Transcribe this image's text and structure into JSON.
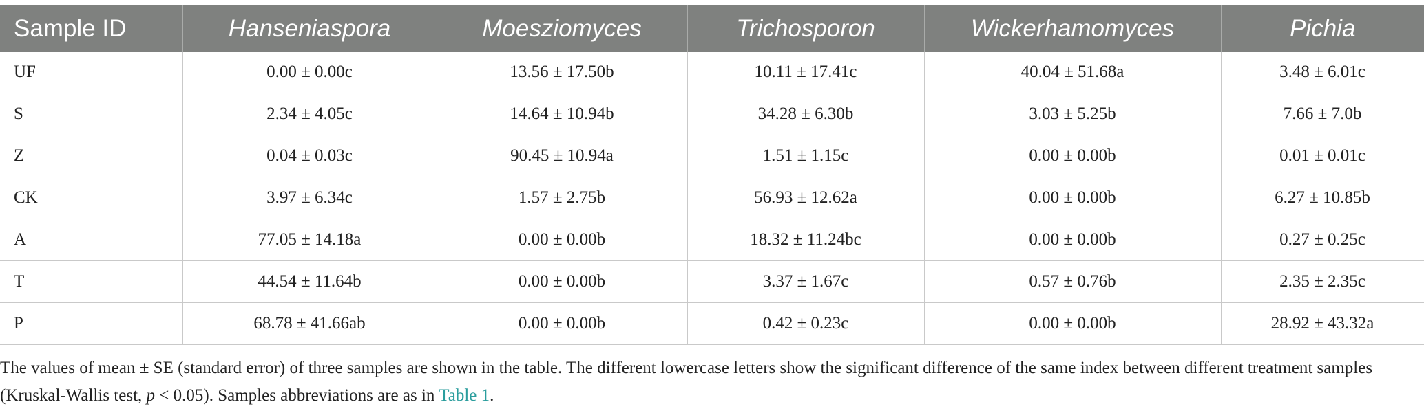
{
  "table": {
    "header": [
      "Sample ID",
      "Hanseniaspora",
      "Moesziomyces",
      "Trichosporon",
      "Wickerhamomyces",
      "Pichia"
    ],
    "rows": [
      [
        "UF",
        "0.00 ± 0.00c",
        "13.56 ± 17.50b",
        "10.11 ± 17.41c",
        "40.04 ± 51.68a",
        "3.48 ± 6.01c"
      ],
      [
        "S",
        "2.34 ± 4.05c",
        "14.64 ± 10.94b",
        "34.28 ± 6.30b",
        "3.03 ± 5.25b",
        "7.66 ± 7.0b"
      ],
      [
        "Z",
        "0.04 ± 0.03c",
        "90.45 ± 10.94a",
        "1.51 ± 1.15c",
        "0.00 ± 0.00b",
        "0.01 ± 0.01c"
      ],
      [
        "CK",
        "3.97 ± 6.34c",
        "1.57 ± 2.75b",
        "56.93 ± 12.62a",
        "0.00 ± 0.00b",
        "6.27 ± 10.85b"
      ],
      [
        "A",
        "77.05 ± 14.18a",
        "0.00 ± 0.00b",
        "18.32 ± 11.24bc",
        "0.00 ± 0.00b",
        "0.27 ± 0.25c"
      ],
      [
        "T",
        "44.54 ± 11.64b",
        "0.00 ± 0.00b",
        "3.37 ± 1.67c",
        "0.57 ± 0.76b",
        "2.35 ± 2.35c"
      ],
      [
        "P",
        "68.78 ± 41.66ab",
        "0.00 ± 0.00b",
        "0.42 ± 0.23c",
        "0.00 ± 0.00b",
        "28.92 ± 43.32a"
      ]
    ]
  },
  "footnote": {
    "text_before_p": "The values of mean ± SE (standard error) of three samples are shown in the table. The different lowercase letters show the significant difference of the same index between different treatment samples (Kruskal-Wallis test, ",
    "p_symbol": "p",
    "text_after_p": " < 0.05). Samples abbreviations are as in ",
    "link_text": "Table 1",
    "end": "."
  },
  "colors": {
    "header_bg": "#7f817f",
    "header_text": "#ffffff",
    "link": "#2a9d9d"
  }
}
